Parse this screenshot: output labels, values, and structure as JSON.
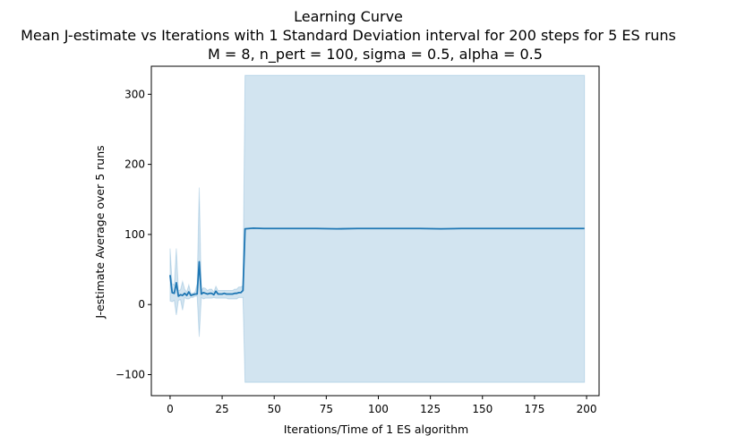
{
  "chart_data": {
    "type": "line",
    "title": "Learning Curve",
    "subtitle_lines": [
      "Mean J-estimate vs Iterations with 1 Standard Deviation interval for 200 steps for 5 ES runs",
      "M = 8, n_pert = 100, sigma = 0.5, alpha = 0.5"
    ],
    "xlabel": "Iterations/Time of 1 ES algorithm",
    "ylabel": "J-estimate Average over 5 runs",
    "xlim": [
      -9,
      206
    ],
    "ylim": [
      -130,
      340
    ],
    "xticks": [
      0,
      25,
      50,
      75,
      100,
      125,
      150,
      175,
      200
    ],
    "yticks": [
      -100,
      0,
      100,
      200,
      300
    ],
    "grid": false,
    "colors": {
      "line": "#1f77b4",
      "band": "#1f77b4",
      "band_opacity": 0.2
    },
    "series": [
      {
        "x": [
          0,
          1,
          2,
          3,
          4,
          5,
          6,
          7,
          8,
          9,
          10,
          11,
          12,
          13,
          14,
          15,
          16,
          17,
          18,
          19,
          20,
          21,
          22,
          23,
          24,
          25,
          26,
          27,
          28,
          29,
          30,
          31,
          32,
          33,
          34,
          35,
          36,
          40,
          45,
          50,
          60,
          70,
          80,
          90,
          100,
          110,
          120,
          130,
          140,
          150,
          160,
          170,
          180,
          190,
          199
        ],
        "y": [
          42,
          17,
          16,
          31,
          12,
          14,
          13,
          16,
          13,
          18,
          13,
          14,
          15,
          15,
          61,
          15,
          17,
          16,
          15,
          16,
          16,
          14,
          19,
          15,
          15,
          15,
          16,
          15,
          15,
          15,
          15,
          16,
          16,
          17,
          17,
          20,
          108,
          109,
          108.5,
          108.5,
          108.5,
          108.5,
          108,
          108.5,
          108.5,
          108.5,
          108.5,
          108,
          108.5,
          108.5,
          108.5,
          108.5,
          108.5,
          108.5,
          108.5
        ],
        "lower": [
          5,
          4,
          6,
          -15,
          6,
          7,
          -8,
          10,
          8,
          8,
          10,
          10,
          12,
          12,
          -46,
          10,
          8,
          9,
          9,
          9,
          9,
          10,
          9,
          9,
          9,
          9,
          9,
          9,
          8,
          8,
          8,
          8,
          8,
          10,
          10,
          10,
          -111,
          -111,
          -111,
          -111,
          -111,
          -111,
          -111,
          -111,
          -111,
          -111,
          -111,
          -111,
          -111,
          -111,
          -111,
          -111,
          -111,
          -111,
          -111
        ],
        "upper": [
          80,
          30,
          28,
          80,
          20,
          21,
          33,
          22,
          18,
          28,
          16,
          16,
          18,
          30,
          167,
          20,
          24,
          23,
          20,
          22,
          22,
          18,
          26,
          20,
          20,
          20,
          20,
          20,
          20,
          20,
          20,
          22,
          22,
          25,
          25,
          27,
          327,
          327,
          327,
          327,
          327,
          327,
          327,
          327,
          327,
          327,
          327,
          327,
          327,
          327,
          327,
          327,
          327,
          327,
          327
        ]
      }
    ]
  }
}
